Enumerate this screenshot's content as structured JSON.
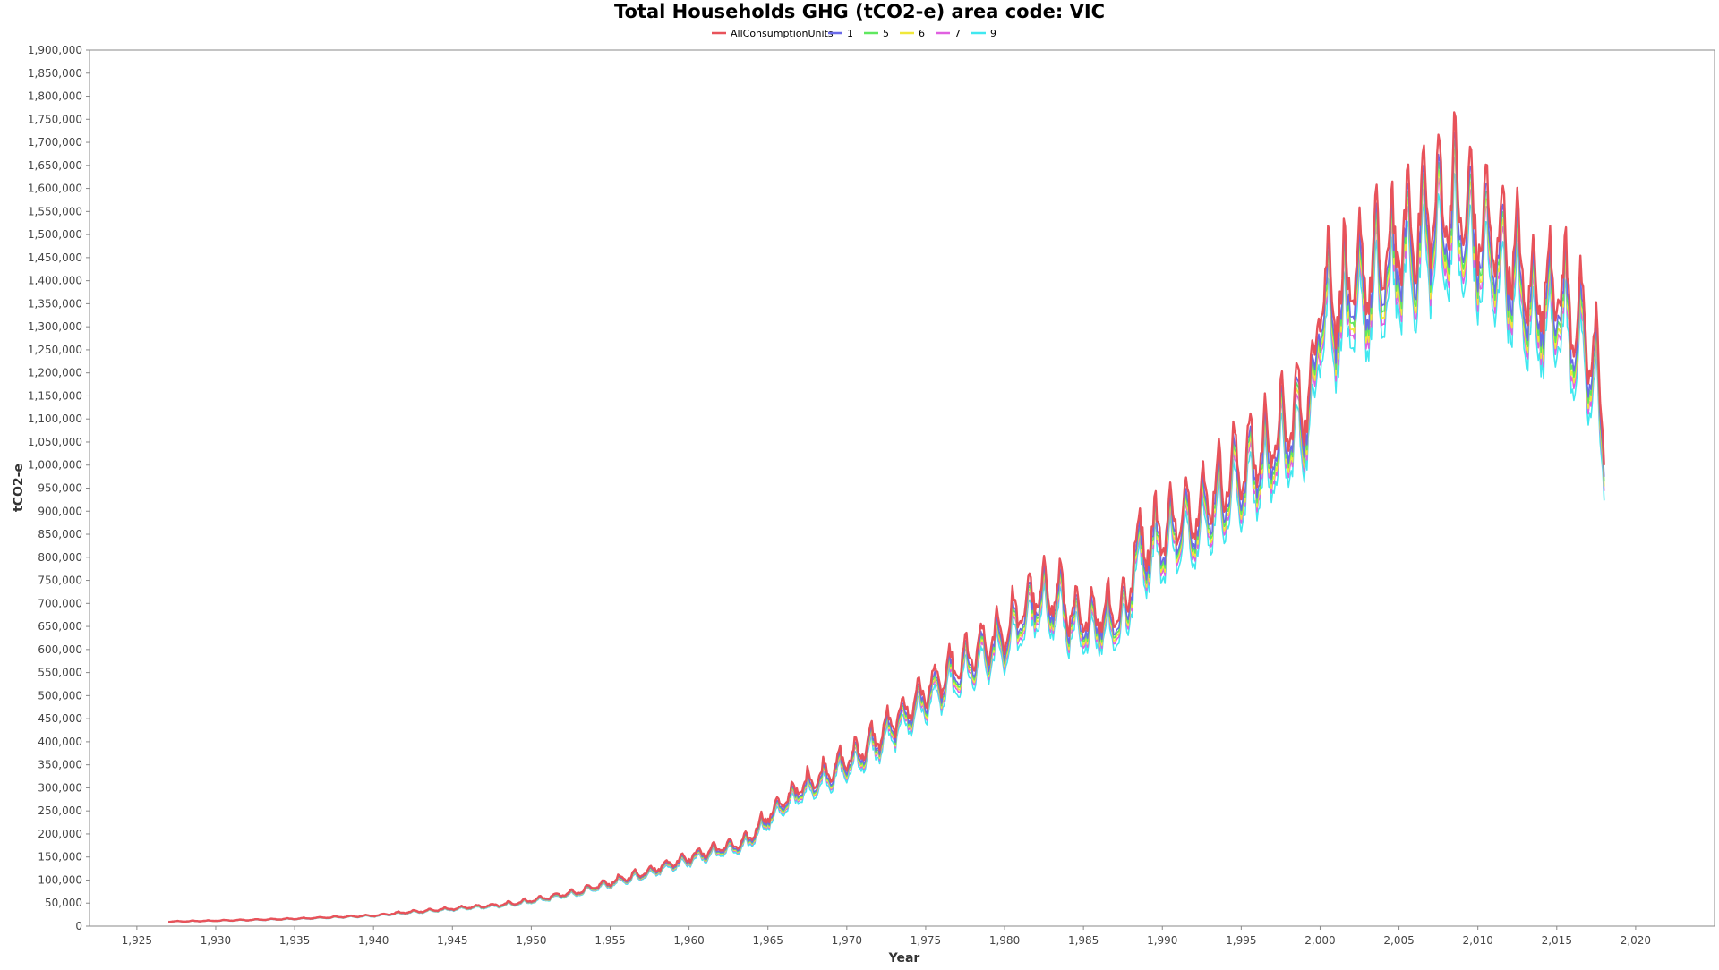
{
  "chart_data": {
    "type": "line",
    "title": "Total Households GHG (tCO2-e) area code: VIC",
    "xlabel": "Year",
    "ylabel": "tCO2-e",
    "xlim": [
      1922,
      2025
    ],
    "ylim": [
      0,
      1900000
    ],
    "x_ticks": [
      "1,925",
      "1,930",
      "1,935",
      "1,940",
      "1,945",
      "1,950",
      "1,955",
      "1,960",
      "1,965",
      "1,970",
      "1,975",
      "1,980",
      "1,985",
      "1,990",
      "1,995",
      "2,000",
      "2,005",
      "2,010",
      "2,015",
      "2,020"
    ],
    "x_tick_values": [
      1925,
      1930,
      1935,
      1940,
      1945,
      1950,
      1955,
      1960,
      1965,
      1970,
      1975,
      1980,
      1985,
      1990,
      1995,
      2000,
      2005,
      2010,
      2015,
      2020
    ],
    "y_ticks": [
      "0",
      "50,000",
      "100,000",
      "150,000",
      "200,000",
      "250,000",
      "300,000",
      "350,000",
      "400,000",
      "450,000",
      "500,000",
      "550,000",
      "600,000",
      "650,000",
      "700,000",
      "750,000",
      "800,000",
      "850,000",
      "900,000",
      "950,000",
      "1,000,000",
      "1,050,000",
      "1,100,000",
      "1,150,000",
      "1,200,000",
      "1,250,000",
      "1,300,000",
      "1,350,000",
      "1,400,000",
      "1,450,000",
      "1,500,000",
      "1,550,000",
      "1,600,000",
      "1,650,000",
      "1,700,000",
      "1,750,000",
      "1,800,000",
      "1,850,000",
      "1,900,000"
    ],
    "y_tick_values": [
      0,
      50000,
      100000,
      150000,
      200000,
      250000,
      300000,
      350000,
      400000,
      450000,
      500000,
      550000,
      600000,
      650000,
      700000,
      750000,
      800000,
      850000,
      900000,
      950000,
      1000000,
      1050000,
      1100000,
      1150000,
      1200000,
      1250000,
      1300000,
      1350000,
      1400000,
      1450000,
      1500000,
      1550000,
      1600000,
      1650000,
      1700000,
      1750000,
      1800000,
      1850000,
      1900000
    ],
    "grid": false,
    "legend_position": "top-center",
    "base_trend": {
      "x": [
        1927,
        1930,
        1935,
        1940,
        1942,
        1945,
        1948,
        1950,
        1953,
        1955,
        1957,
        1960,
        1962,
        1963.5,
        1965,
        1967,
        1970,
        1972,
        1975,
        1977,
        1980,
        1982,
        1983.5,
        1984.5,
        1986,
        1987.8,
        1988.2,
        1990,
        1992,
        1995,
        1997,
        1999.6,
        1999.9,
        2001,
        2003,
        2005,
        2007,
        2008.5,
        2010,
        2012,
        2013.5,
        2015,
        2016.5,
        2017.5,
        2018
      ],
      "y": [
        10000,
        12000,
        16000,
        23000,
        30000,
        38000,
        46000,
        56000,
        75000,
        95000,
        115000,
        150000,
        170000,
        180000,
        240000,
        300000,
        360000,
        410000,
        510000,
        560000,
        640000,
        720000,
        720000,
        660000,
        680000,
        690000,
        820000,
        860000,
        900000,
        1000000,
        1050000,
        1160000,
        1400000,
        1360000,
        1420000,
        1480000,
        1550000,
        1580000,
        1520000,
        1470000,
        1360000,
        1400000,
        1300000,
        1220000,
        1070000
      ]
    },
    "seasonal_amplitude_ratio": 0.1,
    "series": [
      {
        "name": "AllConsumptionUnits",
        "factor": 1.0,
        "color": "#e8525a"
      },
      {
        "name": "1",
        "factor": 0.975,
        "color": "#6a6ae8"
      },
      {
        "name": "5",
        "factor": 0.965,
        "color": "#5fe85f"
      },
      {
        "name": "6",
        "factor": 0.955,
        "color": "#f0e83a"
      },
      {
        "name": "7",
        "factor": 0.945,
        "color": "#e060e0"
      },
      {
        "name": "9",
        "factor": 0.925,
        "color": "#40e8f0"
      }
    ]
  }
}
